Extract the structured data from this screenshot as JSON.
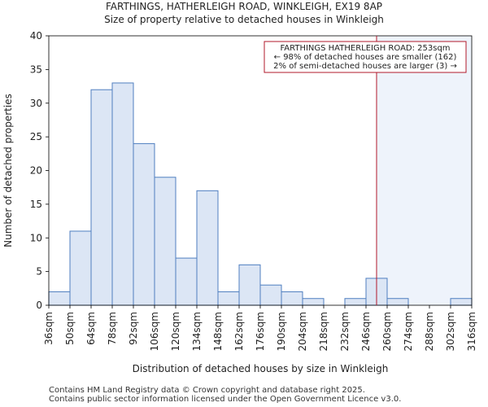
{
  "title_line1": "FARTHINGS, HATHERLEIGH ROAD, WINKLEIGH, EX19 8AP",
  "title_line2": "Size of property relative to detached houses in Winkleigh",
  "footer_line1": "Contains HM Land Registry data © Crown copyright and database right 2025.",
  "footer_line2": "Contains public sector information licensed under the Open Government Licence v3.0.",
  "chart_data": {
    "type": "bar",
    "xlabel": "Distribution of detached houses by size in Winkleigh",
    "ylabel": "Number of detached properties",
    "ylim": [
      0,
      40
    ],
    "yticks": [
      0,
      5,
      10,
      15,
      20,
      25,
      30,
      35,
      40
    ],
    "bin_edges": [
      36,
      50,
      64,
      78,
      92,
      106,
      120,
      134,
      148,
      162,
      176,
      190,
      204,
      218,
      232,
      246,
      260,
      274,
      288,
      302,
      316
    ],
    "tick_labels": [
      "36sqm",
      "50sqm",
      "64sqm",
      "78sqm",
      "92sqm",
      "106sqm",
      "120sqm",
      "134sqm",
      "148sqm",
      "162sqm",
      "176sqm",
      "190sqm",
      "204sqm",
      "218sqm",
      "232sqm",
      "246sqm",
      "260sqm",
      "274sqm",
      "288sqm",
      "302sqm",
      "316sqm"
    ],
    "values": [
      2,
      11,
      32,
      33,
      24,
      19,
      7,
      17,
      2,
      6,
      3,
      2,
      1,
      0,
      1,
      4,
      1,
      0,
      0,
      1
    ],
    "marker_value": 253,
    "annotation": {
      "line1": "FARTHINGS HATHERLEIGH ROAD: 253sqm",
      "line2": "← 98% of detached houses are smaller (162)",
      "line3": "2% of semi-detached houses are larger (3) →"
    },
    "colors": {
      "bar_fill": "#dce6f5",
      "bar_edge": "#4f7fc0",
      "marker": "#b2182b",
      "shade": "#eef3fb",
      "axis": "#000000"
    }
  }
}
